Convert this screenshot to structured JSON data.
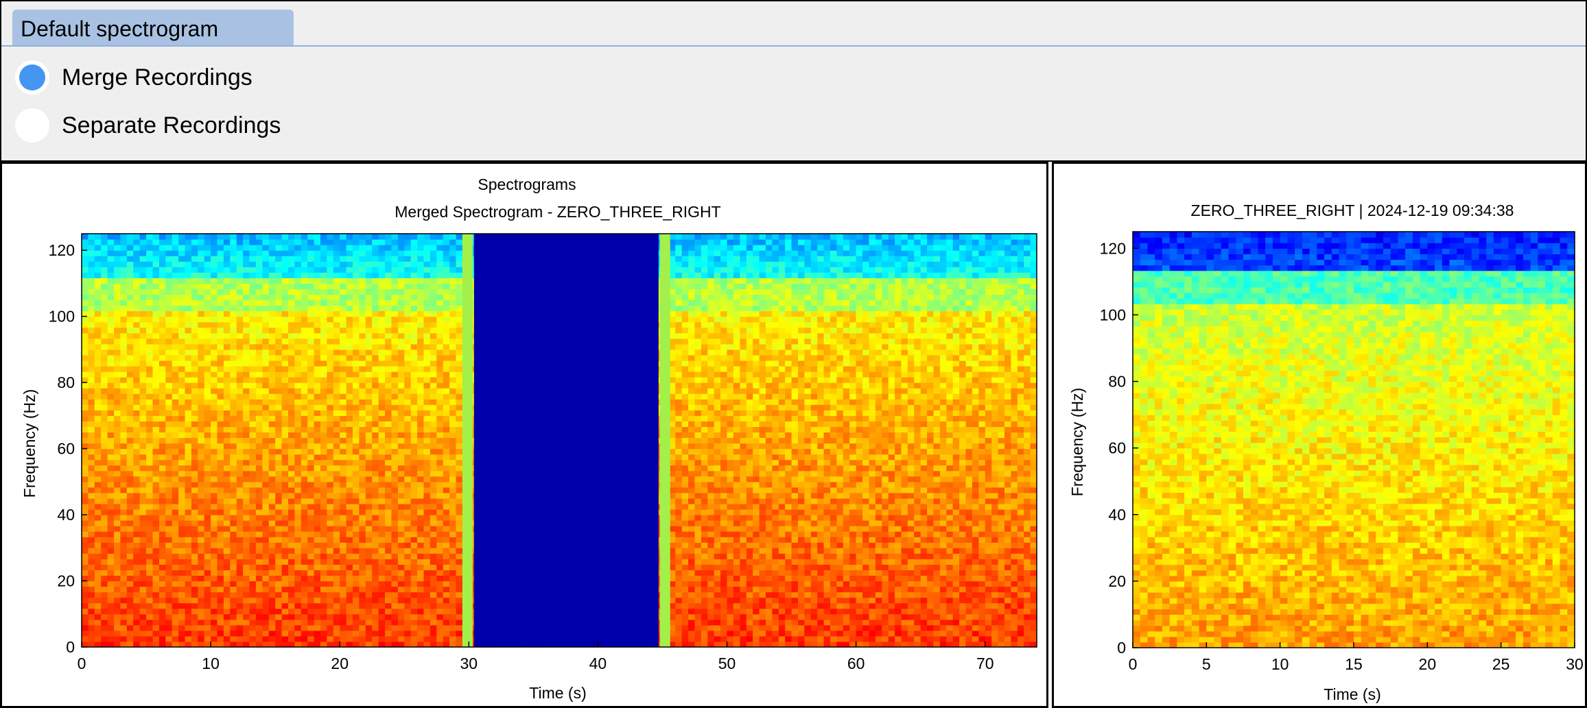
{
  "tab": {
    "label": "Default spectrogram"
  },
  "options": [
    {
      "label": "Merge Recordings",
      "selected": true
    },
    {
      "label": "Separate Recordings",
      "selected": false
    }
  ],
  "colors": {
    "radio_selected": "#4596f2",
    "tab_bg": "#a9c2e3",
    "panel_bg": "#efefef",
    "gap_fill": "#0000aa"
  },
  "left_plot": {
    "suptitle": "Spectrograms",
    "title": "Merged Spectrogram - ZERO_THREE_RIGHT",
    "xlabel": "Time (s)",
    "ylabel": "Frequency (Hz)"
  },
  "right_plot": {
    "title": "ZERO_THREE_RIGHT | 2024-12-19 09:34:38",
    "xlabel": "Time (s)",
    "ylabel": "Frequency (Hz)"
  },
  "chart_data": [
    {
      "type": "heatmap",
      "title": "Merged Spectrogram - ZERO_THREE_RIGHT",
      "xlabel": "Time (s)",
      "ylabel": "Frequency (Hz)",
      "xlim": [
        0,
        74
      ],
      "ylim": [
        0,
        125
      ],
      "xticks": [
        0,
        10,
        20,
        30,
        40,
        50,
        60,
        70
      ],
      "yticks": [
        0,
        20,
        40,
        60,
        80,
        100,
        120
      ],
      "colormap": "jet",
      "gap": {
        "x_start": 30.4,
        "x_end": 44.7
      },
      "green_edges": [
        29.5,
        44.8
      ]
    },
    {
      "type": "heatmap",
      "title": "ZERO_THREE_RIGHT | 2024-12-19 09:34:38",
      "xlabel": "Time (s)",
      "ylabel": "Frequency (Hz)",
      "xlim": [
        0,
        30
      ],
      "ylim": [
        0,
        125
      ],
      "xticks": [
        0,
        5,
        10,
        15,
        20,
        25,
        30
      ],
      "yticks": [
        0,
        20,
        40,
        60,
        80,
        100,
        120
      ],
      "colormap": "jet"
    }
  ]
}
